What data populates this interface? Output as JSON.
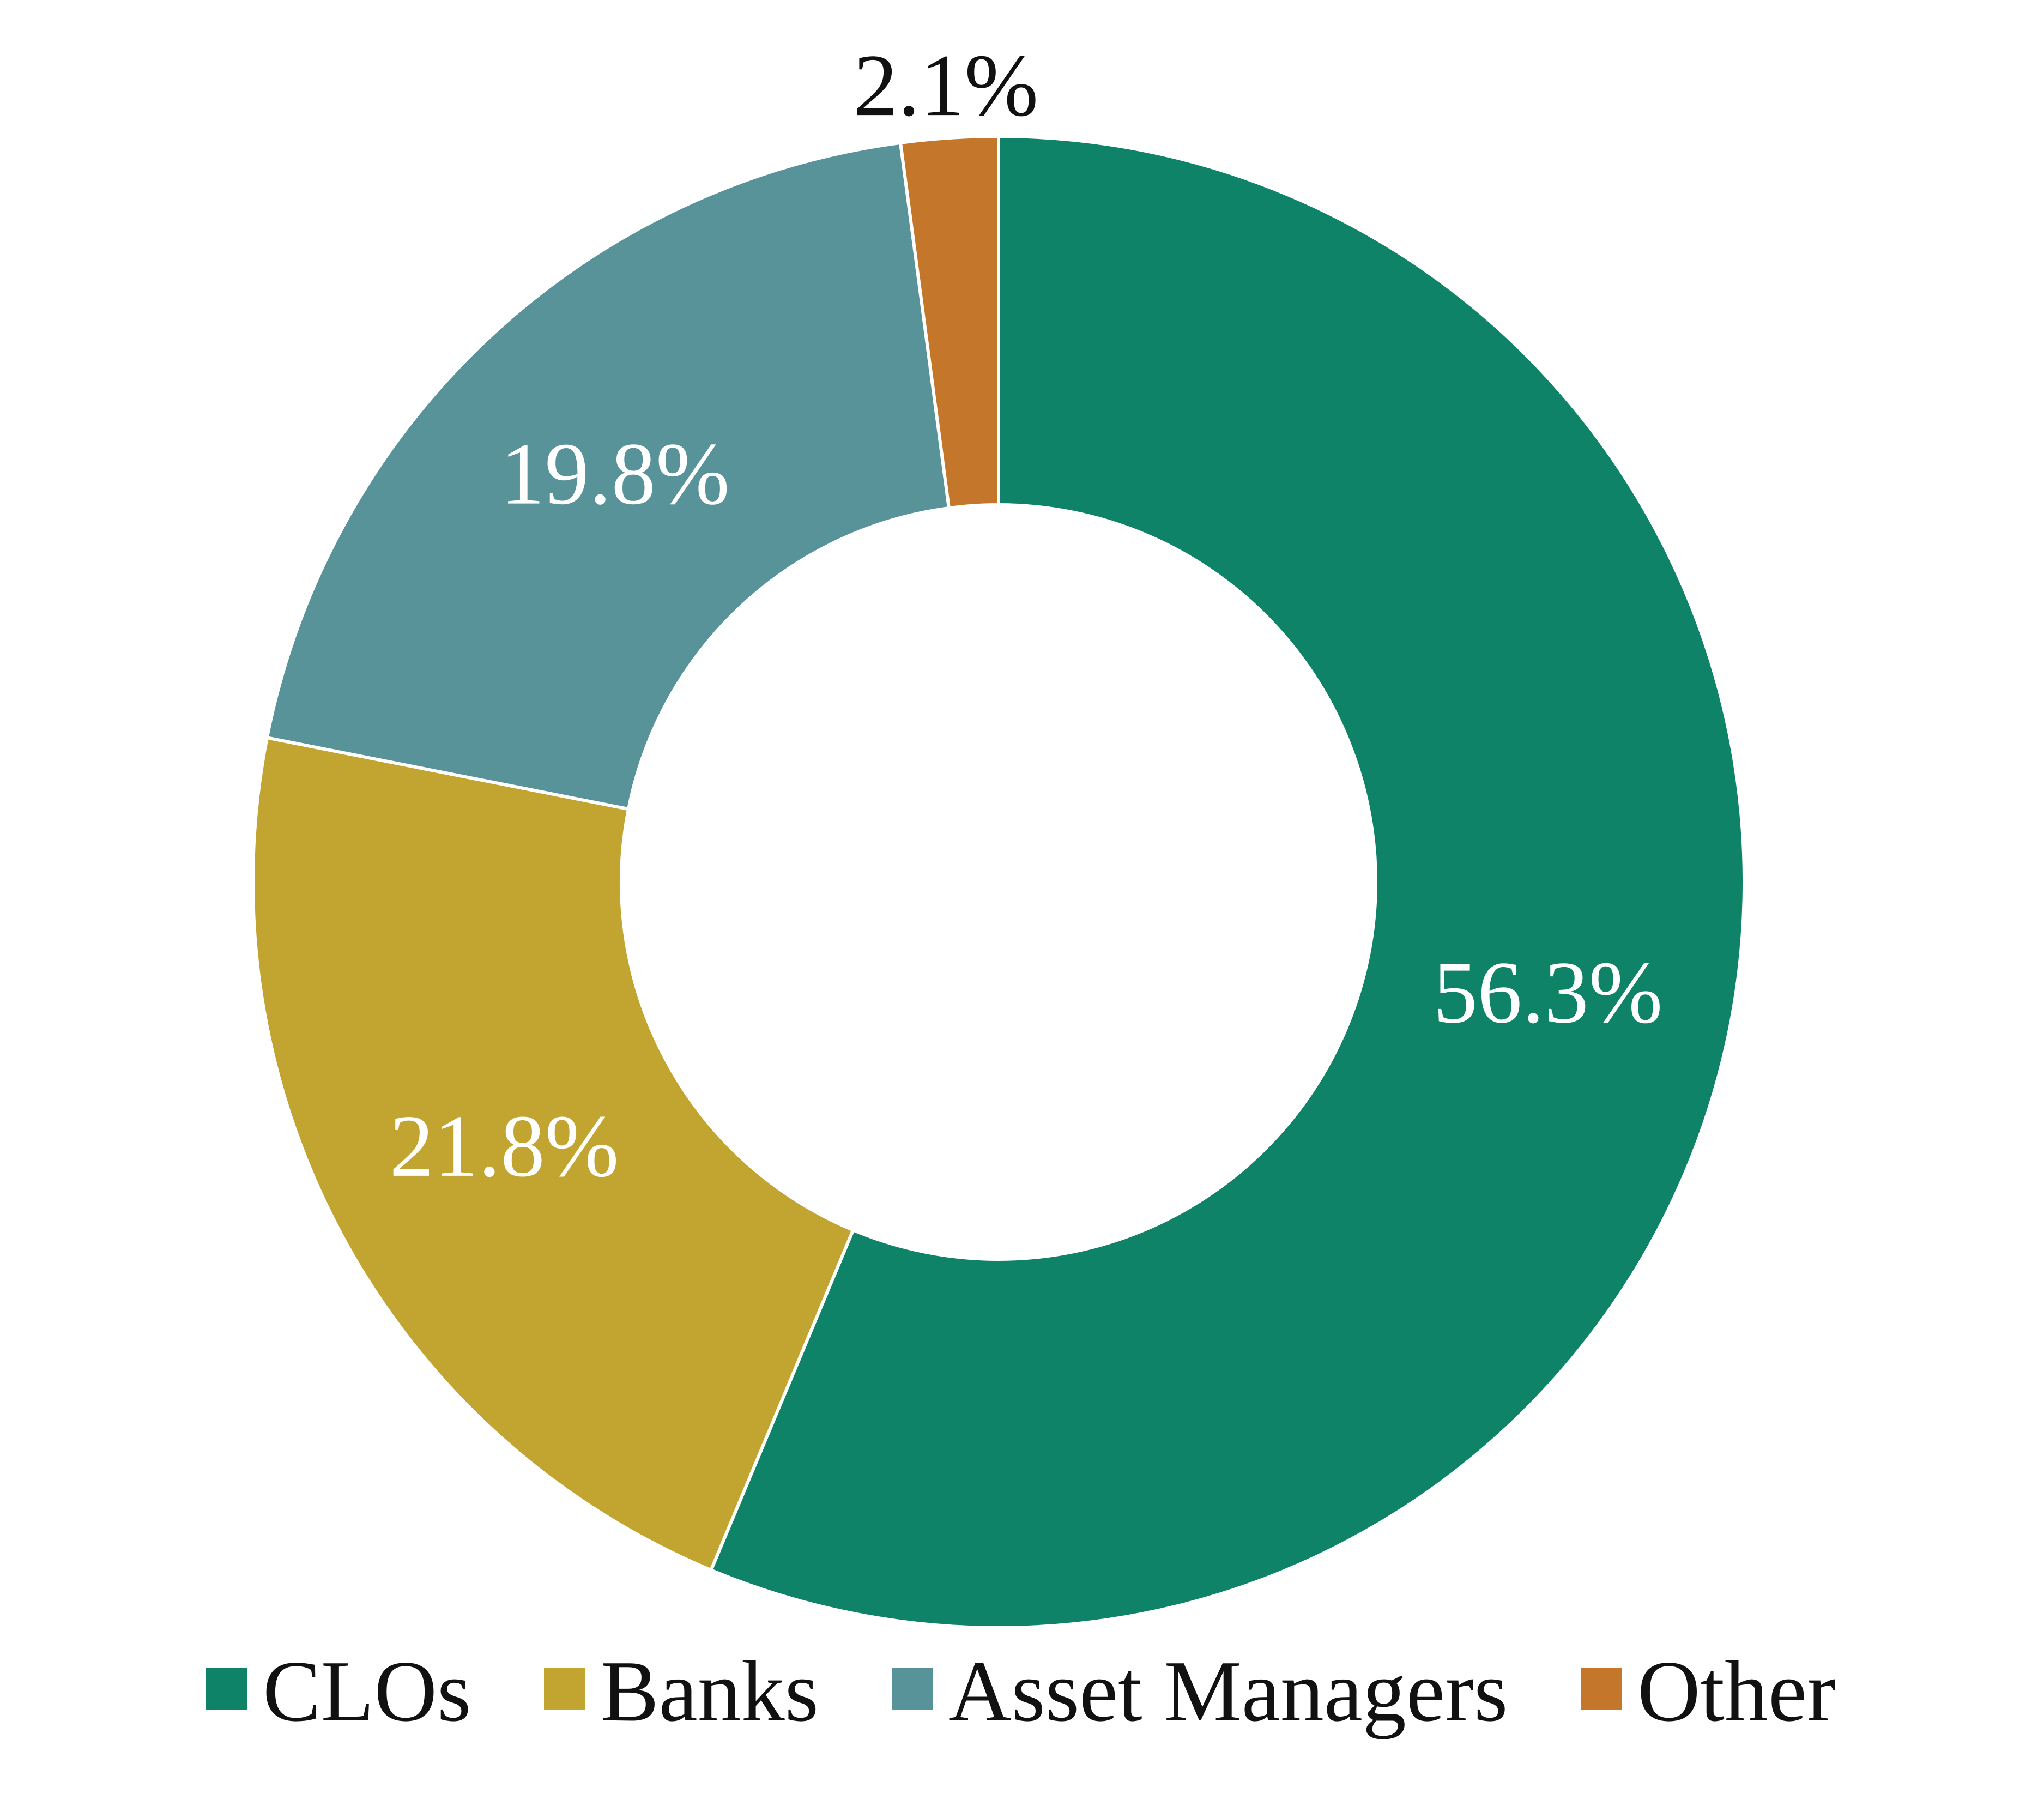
{
  "chart_data": {
    "type": "pie",
    "variant": "donut",
    "title": "",
    "categories": [
      "CLOs",
      "Banks",
      "Asset Managers",
      "Other"
    ],
    "values": [
      56.3,
      21.8,
      19.8,
      2.1
    ],
    "labels": [
      "56.3%",
      "21.8%",
      "19.8%",
      "2.1%"
    ],
    "colors": [
      "#0e8367",
      "#c2a430",
      "#58939a",
      "#c4762a"
    ],
    "label_colors": [
      "#ffffff",
      "#ffffff",
      "#ffffff",
      "#111111"
    ],
    "legend_position": "bottom",
    "start_angle": "top",
    "direction": "clockwise"
  }
}
